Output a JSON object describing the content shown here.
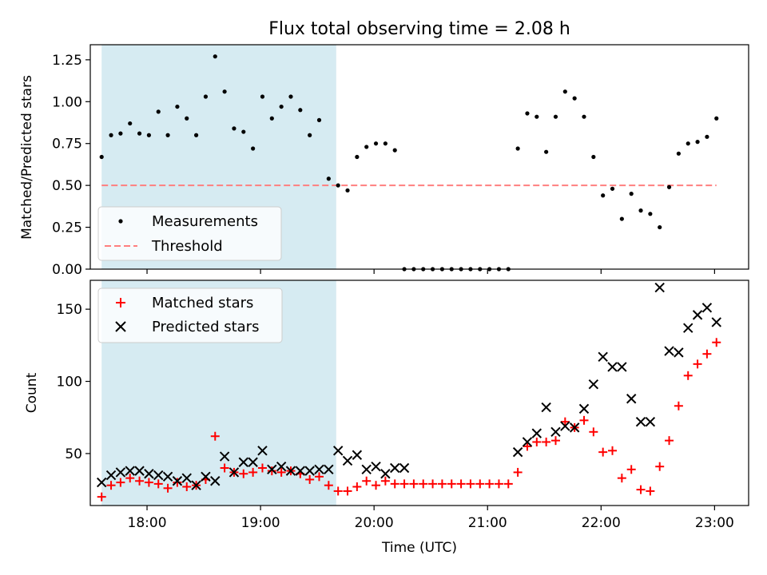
{
  "chart_data": [
    {
      "type": "scatter",
      "title": "Flux total observing time = 2.08 h",
      "ylabel": "Matched/Predicted stars",
      "ylim": [
        0,
        1.34
      ],
      "yticks": [
        0.0,
        0.25,
        0.5,
        0.75,
        1.0,
        1.25
      ],
      "ytick_labels": [
        "0.00",
        "0.25",
        "0.50",
        "0.75",
        "1.00",
        "1.25"
      ],
      "legend_position": "lower-left",
      "shaded_interval": {
        "start": "17:36",
        "end": "19:40",
        "color": "#add8e6"
      },
      "series": [
        {
          "name": "Measurements",
          "marker": "dot",
          "color": "#000000",
          "x": [
            "17:36",
            "17:41",
            "17:46",
            "17:51",
            "17:56",
            "18:01",
            "18:06",
            "18:11",
            "18:16",
            "18:21",
            "18:26",
            "18:31",
            "18:36",
            "18:41",
            "18:46",
            "18:51",
            "18:56",
            "19:01",
            "19:06",
            "19:11",
            "19:16",
            "19:21",
            "19:26",
            "19:31",
            "19:36",
            "19:41",
            "19:46",
            "19:51",
            "19:56",
            "20:01",
            "20:06",
            "20:11",
            "20:16",
            "20:21",
            "20:26",
            "20:31",
            "20:36",
            "20:41",
            "20:46",
            "20:51",
            "20:56",
            "21:01",
            "21:06",
            "21:11",
            "21:16",
            "21:21",
            "21:26",
            "21:31",
            "21:36",
            "21:41",
            "21:46",
            "21:51",
            "21:56",
            "22:01",
            "22:06",
            "22:11",
            "22:16",
            "22:21",
            "22:26",
            "22:31",
            "22:36",
            "22:41",
            "22:46",
            "22:51",
            "22:56",
            "23:01"
          ],
          "values": [
            0.67,
            0.8,
            0.81,
            0.87,
            0.81,
            0.8,
            0.94,
            0.8,
            0.97,
            0.9,
            0.8,
            1.03,
            1.27,
            1.06,
            0.84,
            0.82,
            0.72,
            1.03,
            0.9,
            0.97,
            1.03,
            0.95,
            0.8,
            0.89,
            0.54,
            0.5,
            0.47,
            0.67,
            0.73,
            0.75,
            0.75,
            0.71,
            0.0,
            0.0,
            0.0,
            0.0,
            0.0,
            0.0,
            0.0,
            0.0,
            0.0,
            0.0,
            0.0,
            0.0,
            0.72,
            0.93,
            0.91,
            0.7,
            0.91,
            1.06,
            1.02,
            0.91,
            0.67,
            0.44,
            0.48,
            0.3,
            0.45,
            0.35,
            0.33,
            0.25,
            0.49,
            0.69,
            0.75,
            0.76,
            0.79,
            0.9
          ]
        },
        {
          "name": "Threshold",
          "style": "dashed",
          "color": "#ff7f7f",
          "x": [
            "17:36",
            "23:01"
          ],
          "values": [
            0.5,
            0.5
          ]
        }
      ]
    },
    {
      "type": "scatter",
      "xlabel": "Time (UTC)",
      "ylabel": "Count",
      "ylim": [
        14,
        170
      ],
      "yticks": [
        50,
        100,
        150
      ],
      "ytick_labels": [
        "50",
        "100",
        "150"
      ],
      "xticks": [
        "18:00",
        "19:00",
        "20:00",
        "21:00",
        "22:00",
        "23:00"
      ],
      "xlim": [
        "17:30",
        "23:18"
      ],
      "legend_position": "upper-left",
      "shaded_interval": {
        "start": "17:36",
        "end": "19:40",
        "color": "#add8e6"
      },
      "series": [
        {
          "name": "Matched stars",
          "marker": "plus",
          "color": "#ff0000",
          "x": [
            "17:36",
            "17:41",
            "17:46",
            "17:51",
            "17:56",
            "18:01",
            "18:06",
            "18:11",
            "18:16",
            "18:21",
            "18:26",
            "18:31",
            "18:36",
            "18:41",
            "18:46",
            "18:51",
            "18:56",
            "19:01",
            "19:06",
            "19:11",
            "19:16",
            "19:21",
            "19:26",
            "19:31",
            "19:36",
            "19:41",
            "19:46",
            "19:51",
            "19:56",
            "20:01",
            "20:06",
            "20:11",
            "20:16",
            "20:21",
            "20:26",
            "20:31",
            "20:36",
            "20:41",
            "20:46",
            "20:51",
            "20:56",
            "21:01",
            "21:06",
            "21:11",
            "21:16",
            "21:21",
            "21:26",
            "21:31",
            "21:36",
            "21:41",
            "21:46",
            "21:51",
            "21:56",
            "22:01",
            "22:06",
            "22:11",
            "22:16",
            "22:21",
            "22:26",
            "22:31",
            "22:36",
            "22:41",
            "22:46",
            "22:51",
            "22:56",
            "23:01"
          ],
          "values": [
            20,
            28,
            30,
            33,
            31,
            30,
            29,
            26,
            30,
            27,
            28,
            32,
            62,
            40,
            37,
            36,
            37,
            40,
            38,
            37,
            38,
            36,
            32,
            34,
            28,
            24,
            24,
            27,
            31,
            28,
            31,
            29,
            29,
            29,
            29,
            29,
            29,
            29,
            29,
            29,
            29,
            29,
            29,
            29,
            37,
            55,
            58,
            58,
            59,
            72,
            68,
            73,
            65,
            51,
            52,
            33,
            39,
            25,
            24,
            41,
            59,
            83,
            104,
            112,
            119,
            127
          ]
        },
        {
          "name": "Predicted stars",
          "marker": "x",
          "color": "#000000",
          "x": [
            "17:36",
            "17:41",
            "17:46",
            "17:51",
            "17:56",
            "18:01",
            "18:06",
            "18:11",
            "18:16",
            "18:21",
            "18:26",
            "18:31",
            "18:36",
            "18:41",
            "18:46",
            "18:51",
            "18:56",
            "19:01",
            "19:06",
            "19:11",
            "19:16",
            "19:21",
            "19:26",
            "19:31",
            "19:36",
            "19:41",
            "19:46",
            "19:51",
            "19:56",
            "20:01",
            "20:06",
            "20:11",
            "20:16",
            "21:16",
            "21:21",
            "21:26",
            "21:31",
            "21:36",
            "21:41",
            "21:46",
            "21:51",
            "21:56",
            "22:01",
            "22:06",
            "22:11",
            "22:16",
            "22:21",
            "22:26",
            "22:31",
            "22:36",
            "22:41",
            "22:46",
            "22:51",
            "22:56",
            "23:01"
          ],
          "values": [
            30,
            35,
            37,
            38,
            38,
            36,
            35,
            34,
            31,
            33,
            28,
            34,
            31,
            48,
            37,
            44,
            44,
            52,
            39,
            41,
            38,
            38,
            38,
            39,
            39,
            52,
            45,
            49,
            39,
            41,
            36,
            40,
            40,
            51,
            58,
            64,
            82,
            65,
            69,
            68,
            81,
            98,
            117,
            110,
            110,
            88,
            72,
            72,
            165,
            121,
            120,
            137,
            146,
            151,
            141
          ]
        }
      ]
    }
  ]
}
